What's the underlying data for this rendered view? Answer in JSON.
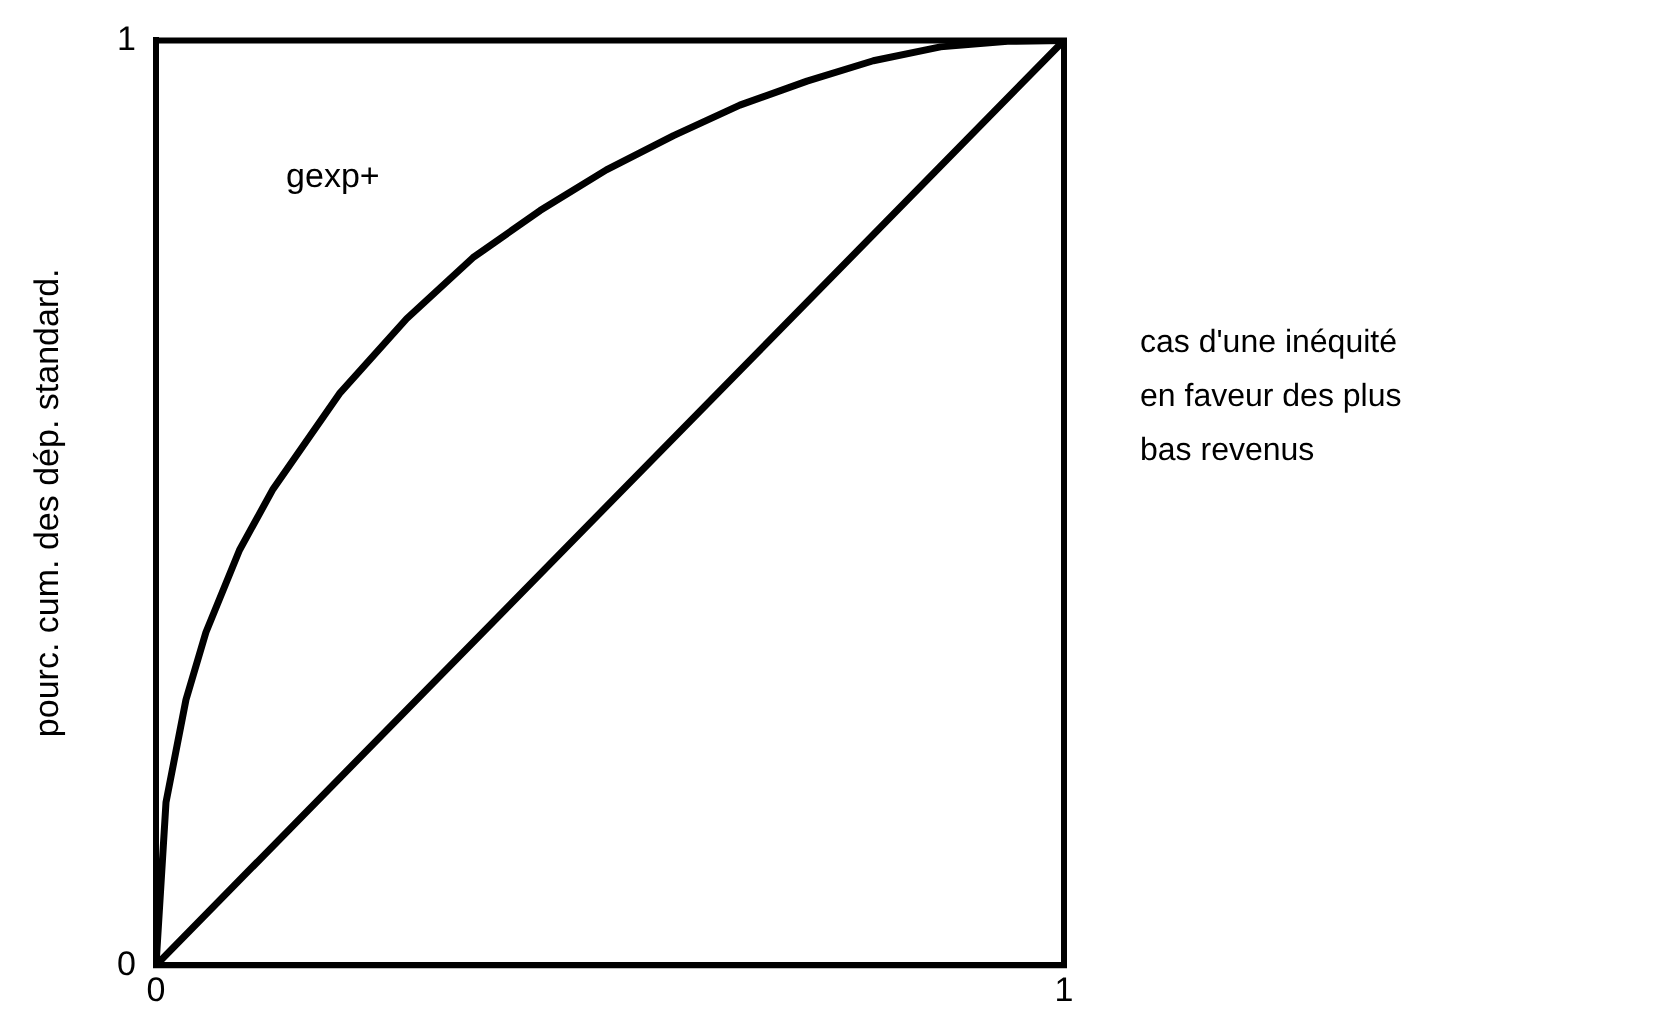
{
  "chart_data": {
    "type": "line",
    "ylabel": "pourc. cum. des dép. standard.",
    "annotations": [
      "cas d'une inéquité en faveur des plus bas revenus"
    ],
    "series": [
      {
        "name": "gexp+",
        "color": "#000000",
        "x": [
          0,
          0.011,
          0.033,
          0.055,
          0.092,
          0.129,
          0.202,
          0.276,
          0.349,
          0.423,
          0.496,
          0.57,
          0.643,
          0.717,
          0.79,
          0.864,
          0.938,
          1
        ],
        "values": [
          0,
          0.176,
          0.287,
          0.36,
          0.449,
          0.515,
          0.618,
          0.699,
          0.765,
          0.816,
          0.86,
          0.897,
          0.93,
          0.956,
          0.978,
          0.993,
          0.999,
          1
        ]
      },
      {
        "color": "#000000",
        "x": [
          0,
          1
        ],
        "values": [
          0,
          1
        ]
      }
    ],
    "xlim": [
      0,
      1
    ],
    "xticks": [
      0,
      1
    ],
    "ylim": [
      0,
      1
    ],
    "yticks": [
      0,
      1
    ],
    "legend": false,
    "marker": "none",
    "line_style": "solid"
  }
}
